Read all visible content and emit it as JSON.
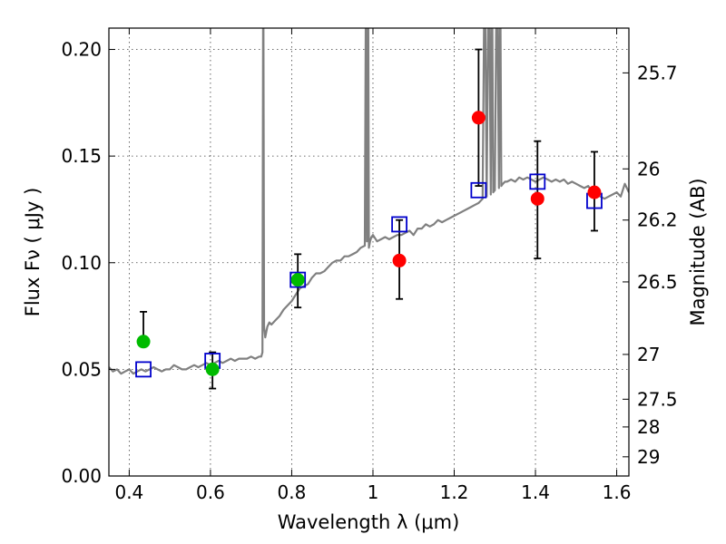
{
  "chart_data": {
    "type": "scatter",
    "xlabel": "Wavelength  λ (μm)",
    "ylabel": "Flux  Fν  ( μJy )",
    "y2label": "Magnitude (AB)",
    "xlim": [
      0.35,
      1.63
    ],
    "ylim": [
      0.0,
      0.21
    ],
    "grid": true,
    "x_ticks": [
      0.4,
      0.6,
      0.8,
      1.0,
      1.2,
      1.4,
      1.6
    ],
    "x_tick_labels": [
      "0.4",
      "0.6",
      "0.8",
      "1",
      "1.2",
      "1.4",
      "1.6"
    ],
    "y_ticks": [
      0.0,
      0.05,
      0.1,
      0.15,
      0.2
    ],
    "y_tick_labels": [
      "0.00",
      "0.05",
      "0.10",
      "0.15",
      "0.20"
    ],
    "y2_ticks": [
      {
        "flux": 0.189,
        "label": "25.7"
      },
      {
        "flux": 0.144,
        "label": "26"
      },
      {
        "flux": 0.12,
        "label": "26.2"
      },
      {
        "flux": 0.091,
        "label": "26.5"
      },
      {
        "flux": 0.057,
        "label": "27"
      },
      {
        "flux": 0.036,
        "label": "27.5"
      },
      {
        "flux": 0.023,
        "label": "28"
      },
      {
        "flux": 0.009,
        "label": "29"
      }
    ],
    "colors": {
      "template": "#808080",
      "model": "#0000cc",
      "green": "#00bb00",
      "red": "#ff0000",
      "errorbar": "#000000"
    },
    "series": [
      {
        "kind": "template-spectrum",
        "x": [
          0.35,
          0.36,
          0.37,
          0.38,
          0.39,
          0.4,
          0.41,
          0.42,
          0.43,
          0.44,
          0.45,
          0.46,
          0.47,
          0.48,
          0.49,
          0.5,
          0.51,
          0.52,
          0.53,
          0.54,
          0.55,
          0.56,
          0.57,
          0.58,
          0.59,
          0.6,
          0.61,
          0.62,
          0.63,
          0.64,
          0.65,
          0.66,
          0.67,
          0.68,
          0.69,
          0.7,
          0.71,
          0.72,
          0.725,
          0.728,
          0.73,
          0.732,
          0.735,
          0.74,
          0.745,
          0.75,
          0.76,
          0.77,
          0.78,
          0.79,
          0.8,
          0.81,
          0.82,
          0.83,
          0.84,
          0.85,
          0.86,
          0.87,
          0.88,
          0.89,
          0.9,
          0.91,
          0.92,
          0.93,
          0.94,
          0.95,
          0.96,
          0.97,
          0.98,
          0.983,
          0.985,
          0.988,
          0.99,
          0.993,
          0.996,
          1.0,
          1.01,
          1.02,
          1.03,
          1.04,
          1.05,
          1.06,
          1.07,
          1.08,
          1.09,
          1.1,
          1.11,
          1.12,
          1.13,
          1.14,
          1.15,
          1.16,
          1.17,
          1.18,
          1.19,
          1.2,
          1.21,
          1.22,
          1.23,
          1.24,
          1.25,
          1.26,
          1.27,
          1.275,
          1.28,
          1.285,
          1.29,
          1.293,
          1.296,
          1.3,
          1.305,
          1.31,
          1.313,
          1.316,
          1.32,
          1.325,
          1.33,
          1.34,
          1.35,
          1.36,
          1.37,
          1.38,
          1.39,
          1.4,
          1.41,
          1.42,
          1.43,
          1.44,
          1.45,
          1.46,
          1.47,
          1.48,
          1.49,
          1.5,
          1.51,
          1.52,
          1.53,
          1.54,
          1.55,
          1.56,
          1.57,
          1.58,
          1.59,
          1.6,
          1.61,
          1.62,
          1.63
        ],
        "y": [
          0.051,
          0.049,
          0.05,
          0.048,
          0.049,
          0.05,
          0.048,
          0.049,
          0.05,
          0.049,
          0.05,
          0.051,
          0.05,
          0.049,
          0.05,
          0.05,
          0.052,
          0.051,
          0.05,
          0.05,
          0.051,
          0.052,
          0.051,
          0.052,
          0.053,
          0.052,
          0.053,
          0.054,
          0.053,
          0.054,
          0.055,
          0.054,
          0.055,
          0.055,
          0.055,
          0.056,
          0.055,
          0.056,
          0.056,
          0.058,
          0.25,
          0.07,
          0.065,
          0.07,
          0.072,
          0.071,
          0.073,
          0.075,
          0.078,
          0.08,
          0.082,
          0.085,
          0.088,
          0.089,
          0.09,
          0.093,
          0.095,
          0.095,
          0.096,
          0.098,
          0.1,
          0.101,
          0.101,
          0.103,
          0.103,
          0.104,
          0.105,
          0.107,
          0.108,
          0.25,
          0.11,
          0.25,
          0.107,
          0.11,
          0.112,
          0.113,
          0.11,
          0.111,
          0.112,
          0.111,
          0.112,
          0.113,
          0.113,
          0.114,
          0.115,
          0.113,
          0.116,
          0.116,
          0.118,
          0.117,
          0.118,
          0.12,
          0.119,
          0.12,
          0.121,
          0.122,
          0.123,
          0.124,
          0.125,
          0.126,
          0.127,
          0.128,
          0.13,
          0.25,
          0.131,
          0.25,
          0.132,
          0.25,
          0.133,
          0.134,
          0.25,
          0.135,
          0.25,
          0.136,
          0.137,
          0.138,
          0.138,
          0.139,
          0.138,
          0.14,
          0.139,
          0.14,
          0.139,
          0.138,
          0.139,
          0.14,
          0.139,
          0.138,
          0.139,
          0.138,
          0.139,
          0.137,
          0.138,
          0.137,
          0.136,
          0.135,
          0.136,
          0.133,
          0.132,
          0.131,
          0.13,
          0.131,
          0.132,
          0.133,
          0.131,
          0.137,
          0.133
        ]
      },
      {
        "kind": "model-squares",
        "x": [
          0.435,
          0.605,
          0.815,
          1.065,
          1.26,
          1.405,
          1.545
        ],
        "y": [
          0.05,
          0.054,
          0.092,
          0.118,
          0.134,
          0.138,
          0.129
        ]
      },
      {
        "kind": "observed-green",
        "x": [
          0.435,
          0.605,
          0.815
        ],
        "y": [
          0.063,
          0.05,
          0.092
        ],
        "err_low": [
          0.063,
          0.041,
          0.079
        ],
        "err_high": [
          0.077,
          0.058,
          0.104
        ]
      },
      {
        "kind": "observed-red",
        "x": [
          1.065,
          1.26,
          1.405,
          1.545
        ],
        "y": [
          0.101,
          0.168,
          0.13,
          0.133
        ],
        "err_low": [
          0.083,
          0.136,
          0.102,
          0.115
        ],
        "err_high": [
          0.12,
          0.2,
          0.157,
          0.152
        ]
      }
    ]
  }
}
